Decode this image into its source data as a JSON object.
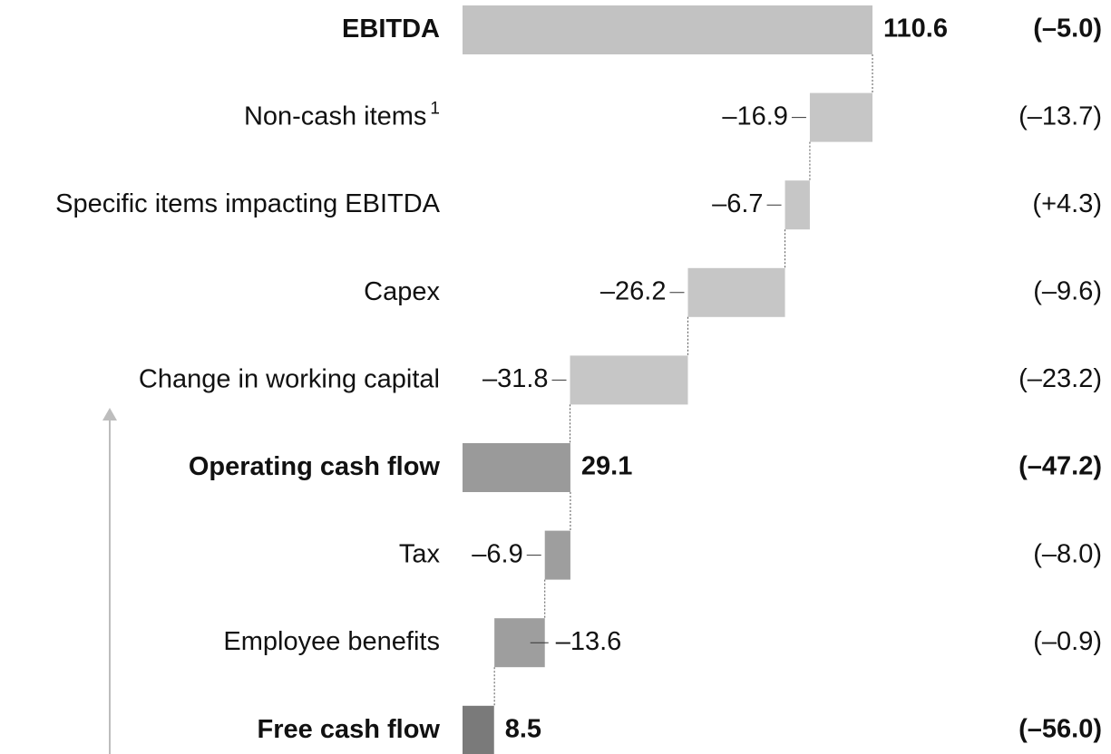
{
  "chart_data": {
    "type": "waterfall",
    "orientation": "horizontal",
    "categories": [
      "EBITDA",
      "Non-cash items",
      "Specific items impacting EBITDA",
      "Capex",
      "Change in working capital",
      "Operating cash flow",
      "Tax",
      "Employee benefits",
      "Free cash flow"
    ],
    "category_notes": [
      null,
      "1",
      null,
      null,
      null,
      null,
      null,
      null,
      null
    ],
    "measures": [
      "total",
      "relative",
      "relative",
      "relative",
      "relative",
      "total",
      "relative",
      "relative",
      "total"
    ],
    "values": [
      110.6,
      -16.9,
      -6.7,
      -26.2,
      -31.8,
      29.1,
      -6.9,
      -13.6,
      8.5
    ],
    "value_labels": [
      "110.6",
      "–16.9",
      "–6.7",
      "–26.2",
      "–31.8",
      "29.1",
      "–6.9",
      "–13.6",
      "8.5"
    ],
    "label_sides": [
      "right",
      "left",
      "left",
      "left",
      "left",
      "right",
      "left",
      "right",
      "right"
    ],
    "comparison_labels": [
      "(–5.0)",
      "(–13.7)",
      "(+4.3)",
      "(–9.6)",
      "(–23.2)",
      "(–47.2)",
      "(–8.0)",
      "(–0.9)",
      "(–56.0)"
    ],
    "colors": [
      "#c2c2c2",
      "#c6c6c6",
      "#c6c6c6",
      "#c6c6c6",
      "#c6c6c6",
      "#9a9a9a",
      "#9e9e9e",
      "#9e9e9e",
      "#7a7a7a"
    ],
    "xlim": [
      0,
      110.6
    ]
  }
}
